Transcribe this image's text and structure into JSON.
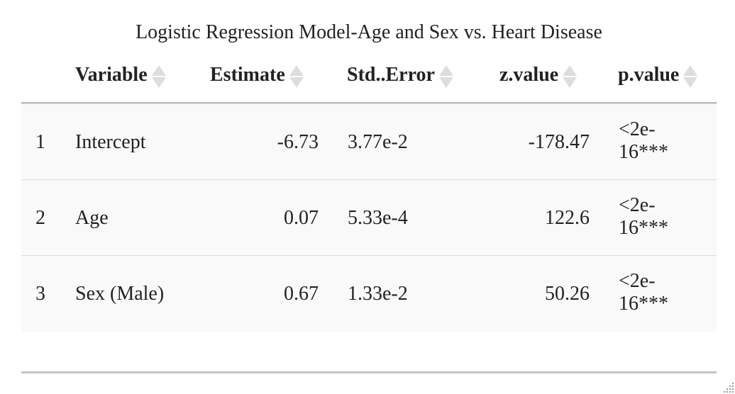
{
  "table": {
    "caption": "Logistic Regression Model-Age and Sex vs. Heart Disease",
    "columns": [
      "Variable",
      "Estimate",
      "Std..Error",
      "z.value",
      "p.value"
    ],
    "rows": [
      {
        "index": "1",
        "variable": "Intercept",
        "estimate": "-6.73",
        "std_error": "3.77e-2",
        "z_value": "-178.47",
        "p_value_1": "<2e-",
        "p_value_2": "16***"
      },
      {
        "index": "2",
        "variable": "Age",
        "estimate": "0.07",
        "std_error": "5.33e-4",
        "z_value": "122.6",
        "p_value_1": "<2e-",
        "p_value_2": "16***"
      },
      {
        "index": "3",
        "variable": "Sex (Male)",
        "estimate": "0.67",
        "std_error": "1.33e-2",
        "z_value": "50.26",
        "p_value_1": "<2e-",
        "p_value_2": "16***"
      }
    ]
  },
  "colors": {
    "row_background": "#f9f9f9",
    "sort_icon": "#dddddd",
    "rule": "#b9b9b9"
  },
  "icons": {
    "sort": "sort-both-icon",
    "resize": "resize-grip-icon"
  }
}
